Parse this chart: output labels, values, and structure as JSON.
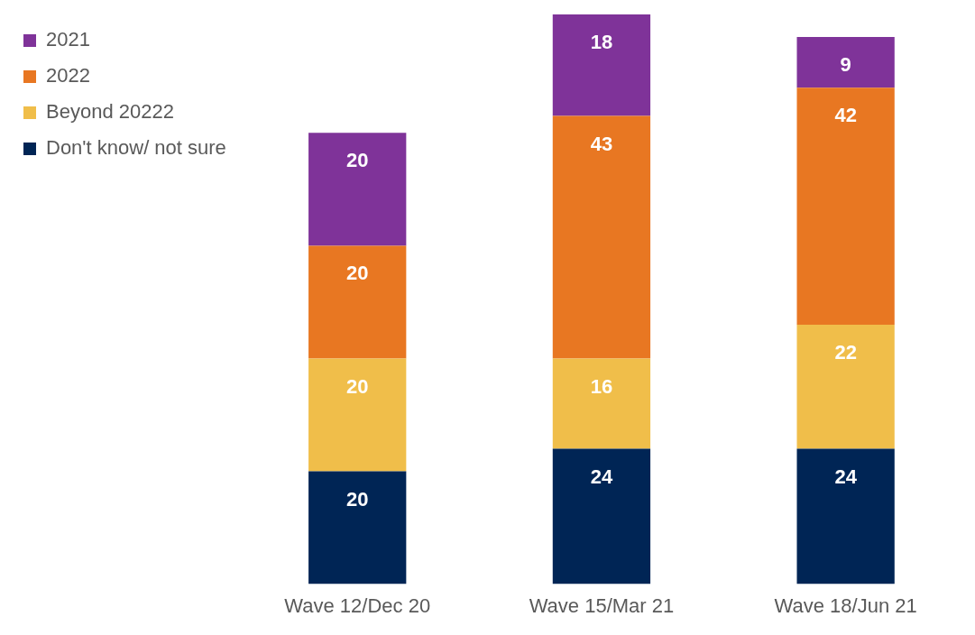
{
  "chart_data": {
    "type": "bar",
    "stacked": true,
    "data_labels": true,
    "legend": "left",
    "grid": false,
    "tick_labels": "x",
    "categories": [
      "Wave 12/Dec 20",
      "Wave 15/Mar 21",
      "Wave 18/Jun 21"
    ],
    "series": [
      {
        "name": "Don't know/ not sure",
        "color": "#002555",
        "values": [
          20,
          24,
          24
        ]
      },
      {
        "name": "Beyond 20222",
        "color": "#f0be4a",
        "values": [
          20,
          16,
          22
        ]
      },
      {
        "name": "2022",
        "color": "#e87722",
        "values": [
          20,
          43,
          42
        ]
      },
      {
        "name": "2021",
        "color": "#7f3399",
        "values": [
          20,
          18,
          9
        ]
      }
    ]
  }
}
